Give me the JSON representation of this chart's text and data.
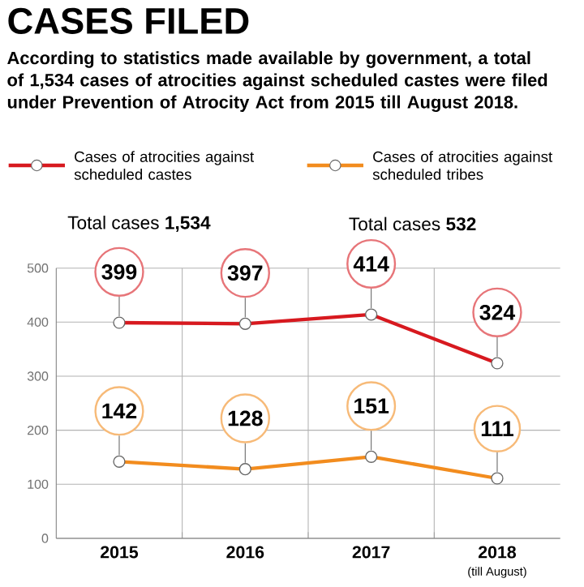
{
  "chart_data": {
    "type": "line",
    "title": "CASES FILED",
    "subtitle": "According to statistics made available by government, a total of 1,534 cases of atrocities against scheduled castes were filed under Prevention of Atrocity Act from 2015 till August 2018.",
    "categories": [
      "2015",
      "2016",
      "2017",
      "2018"
    ],
    "series": [
      {
        "name": "Cases of atrocities against scheduled castes",
        "color": "#d7191f",
        "values": [
          399,
          397,
          414,
          324
        ]
      },
      {
        "name": "Cases of atrocities against scheduled tribes",
        "color": "#f28c1e",
        "values": [
          142,
          128,
          151,
          111
        ]
      }
    ],
    "annotations": [
      "Total cases **1,534**",
      "Total cases **532**",
      "(till August)"
    ],
    "ylim": [
      0,
      500
    ],
    "yticks": [
      0,
      100,
      200,
      300,
      400,
      500
    ],
    "grid": true,
    "legend": "top",
    "marker": "circle",
    "line_style": "solid",
    "data_labels": true
  }
}
